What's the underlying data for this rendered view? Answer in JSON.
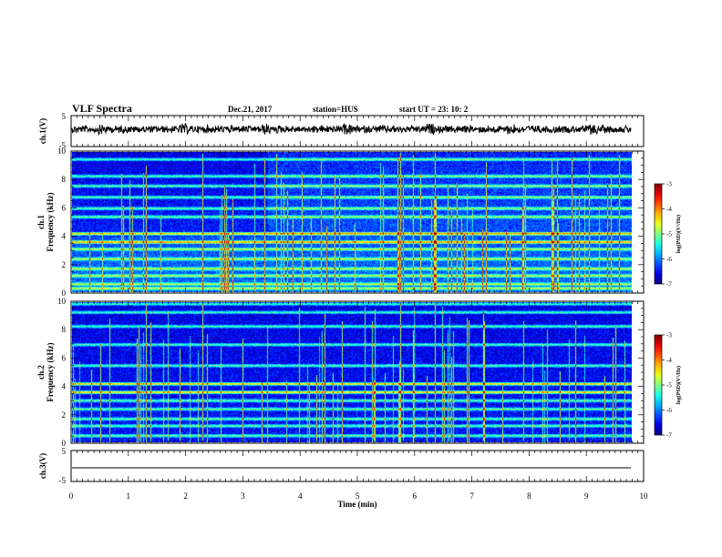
{
  "header": {
    "title": "VLF Spectra",
    "date": "Dec.21, 2017",
    "station": "station=HUS",
    "start": "start UT =  23: 10: 2"
  },
  "chart_data": [
    {
      "type": "line",
      "name": "waveform-ch1",
      "ylabel": "ch.1(V)",
      "ylim": [
        -5,
        5
      ],
      "yticks": [
        "5",
        "-5"
      ],
      "xlim": [
        0,
        10
      ],
      "signal": "noise burst around 0 V"
    },
    {
      "type": "heatmap",
      "name": "spectrogram-ch1",
      "ylabel_top": "ch.1",
      "ylabel": "Frequency (kHz)",
      "ylim": [
        0,
        10
      ],
      "yticks": [
        "0",
        "2",
        "4",
        "6",
        "8",
        "10"
      ],
      "xlim": [
        0,
        9.83
      ],
      "bands_khz": [
        0.3,
        0.6,
        1.2,
        1.7,
        2.4,
        3.1,
        3.6,
        4.2,
        5.4,
        6.0,
        6.8,
        7.6,
        8.3,
        9.5
      ],
      "colorbar": {
        "label": "log(PSD)(V²/Hz)",
        "range": [
          -7,
          -3
        ],
        "ticks": [
          "-3",
          "-4",
          "-5",
          "-6",
          "-7"
        ]
      }
    },
    {
      "type": "heatmap",
      "name": "spectrogram-ch2",
      "ylabel_top": "ch.2",
      "ylabel": "Frequency (kHz)",
      "ylim": [
        0,
        10
      ],
      "yticks": [
        "0",
        "2",
        "4",
        "6",
        "8",
        "10"
      ],
      "xlim": [
        0,
        9.83
      ],
      "bands_khz": [
        0.5,
        1.2,
        1.7,
        2.4,
        3.0,
        3.6,
        4.2,
        5.5,
        7.0,
        8.3,
        9.3,
        9.9
      ],
      "colorbar": {
        "label": "log(PSD)(V²/Hz)",
        "range": [
          -7,
          -3
        ],
        "ticks": [
          "-3",
          "-4",
          "-5",
          "-6",
          "-7"
        ]
      }
    },
    {
      "type": "line",
      "name": "waveform-ch3",
      "ylabel": "ch.3(V)",
      "ylim": [
        -5,
        5
      ],
      "yticks": [
        "5",
        "-5"
      ],
      "xlim": [
        0,
        10
      ],
      "xlabel": "Time (min)",
      "xticks": [
        "0",
        "1",
        "2",
        "3",
        "4",
        "5",
        "6",
        "7",
        "8",
        "9",
        "10"
      ],
      "signal": "flat line near -2 V"
    }
  ]
}
